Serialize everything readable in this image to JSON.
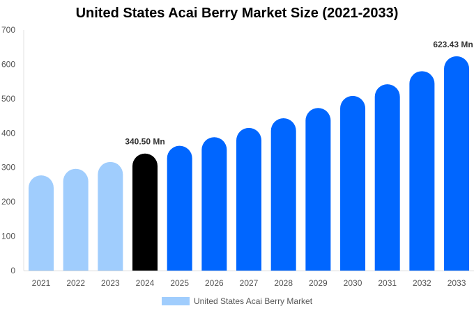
{
  "chart_data": {
    "type": "bar",
    "title": "United States Acai Berry Market Size (2021-2033)",
    "categories": [
      "2021",
      "2022",
      "2023",
      "2024",
      "2025",
      "2026",
      "2027",
      "2028",
      "2029",
      "2030",
      "2031",
      "2032",
      "2033"
    ],
    "series": [
      {
        "name": "United States Acai Berry Market",
        "values": [
          277,
          296,
          316,
          340.5,
          363,
          388,
          415,
          443,
          473,
          508,
          542,
          580,
          623.43
        ]
      }
    ],
    "data_labels": {
      "3": "340.50 Mn",
      "12": "623.43 Mn"
    },
    "ylim": [
      0,
      700
    ],
    "yticks": [
      0,
      100,
      200,
      300,
      400,
      500,
      600,
      700
    ],
    "grid": false,
    "legend": "bottom",
    "colors": {
      "history": "#a0cdfd",
      "base_year": "#000000",
      "forecast": "#0066ff"
    }
  }
}
